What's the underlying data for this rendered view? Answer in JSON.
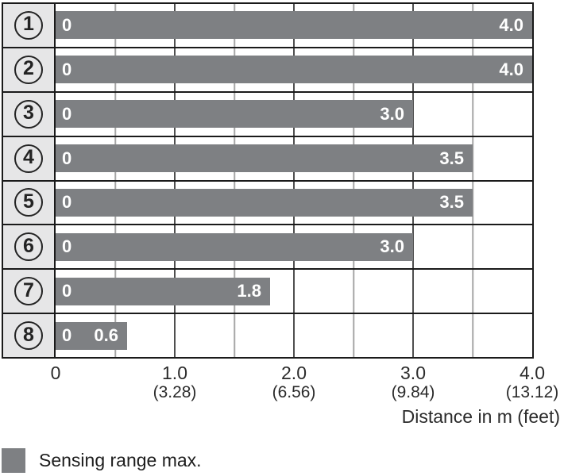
{
  "chart_data": {
    "type": "bar",
    "orientation": "horizontal",
    "title": "",
    "categories": [
      "1",
      "2",
      "3",
      "4",
      "5",
      "6",
      "7",
      "8"
    ],
    "series": [
      {
        "name": "Sensing range max.",
        "values": [
          4.0,
          4.0,
          3.0,
          3.5,
          3.5,
          3.0,
          1.8,
          0.6
        ]
      }
    ],
    "xlabel": "Distance in m (feet)",
    "ylabel": "",
    "xlim": [
      0,
      4
    ],
    "grid": true,
    "minor_grid_step": 0.5,
    "legend_position": "bottom-left"
  },
  "chart": {
    "rows": [
      {
        "category": "1",
        "value": 4.0,
        "start_label": "0",
        "value_label": "4.0"
      },
      {
        "category": "2",
        "value": 4.0,
        "start_label": "0",
        "value_label": "4.0"
      },
      {
        "category": "3",
        "value": 3.0,
        "start_label": "0",
        "value_label": "3.0"
      },
      {
        "category": "4",
        "value": 3.5,
        "start_label": "0",
        "value_label": "3.5"
      },
      {
        "category": "5",
        "value": 3.5,
        "start_label": "0",
        "value_label": "3.5"
      },
      {
        "category": "6",
        "value": 3.0,
        "start_label": "0",
        "value_label": "3.0"
      },
      {
        "category": "7",
        "value": 1.8,
        "start_label": "0",
        "value_label": "1.8"
      },
      {
        "category": "8",
        "value": 0.6,
        "start_label": "0",
        "value_label": "0.6"
      }
    ],
    "axis": {
      "max": 4,
      "minor_step": 0.5,
      "ticks": [
        {
          "value": 0,
          "label": "0",
          "sub": ""
        },
        {
          "value": 1,
          "label": "1.0",
          "sub": "(3.28)"
        },
        {
          "value": 2,
          "label": "2.0",
          "sub": "(6.56)"
        },
        {
          "value": 3,
          "label": "3.0",
          "sub": "(9.84)"
        },
        {
          "value": 4,
          "label": "4.0",
          "sub": "(13.12)"
        }
      ],
      "title": "Distance in m (feet)"
    },
    "legend": {
      "label": "Sensing range max."
    }
  },
  "colors": {
    "bar": "#7e8083",
    "bar_text": "#ffffff",
    "label_column_bg": "#e6e6e7",
    "border": "#1a1a1a",
    "grid_major": "#4f4f4f",
    "grid_minor": "#a6a6a6",
    "axis_text": "#2b2b2b"
  }
}
